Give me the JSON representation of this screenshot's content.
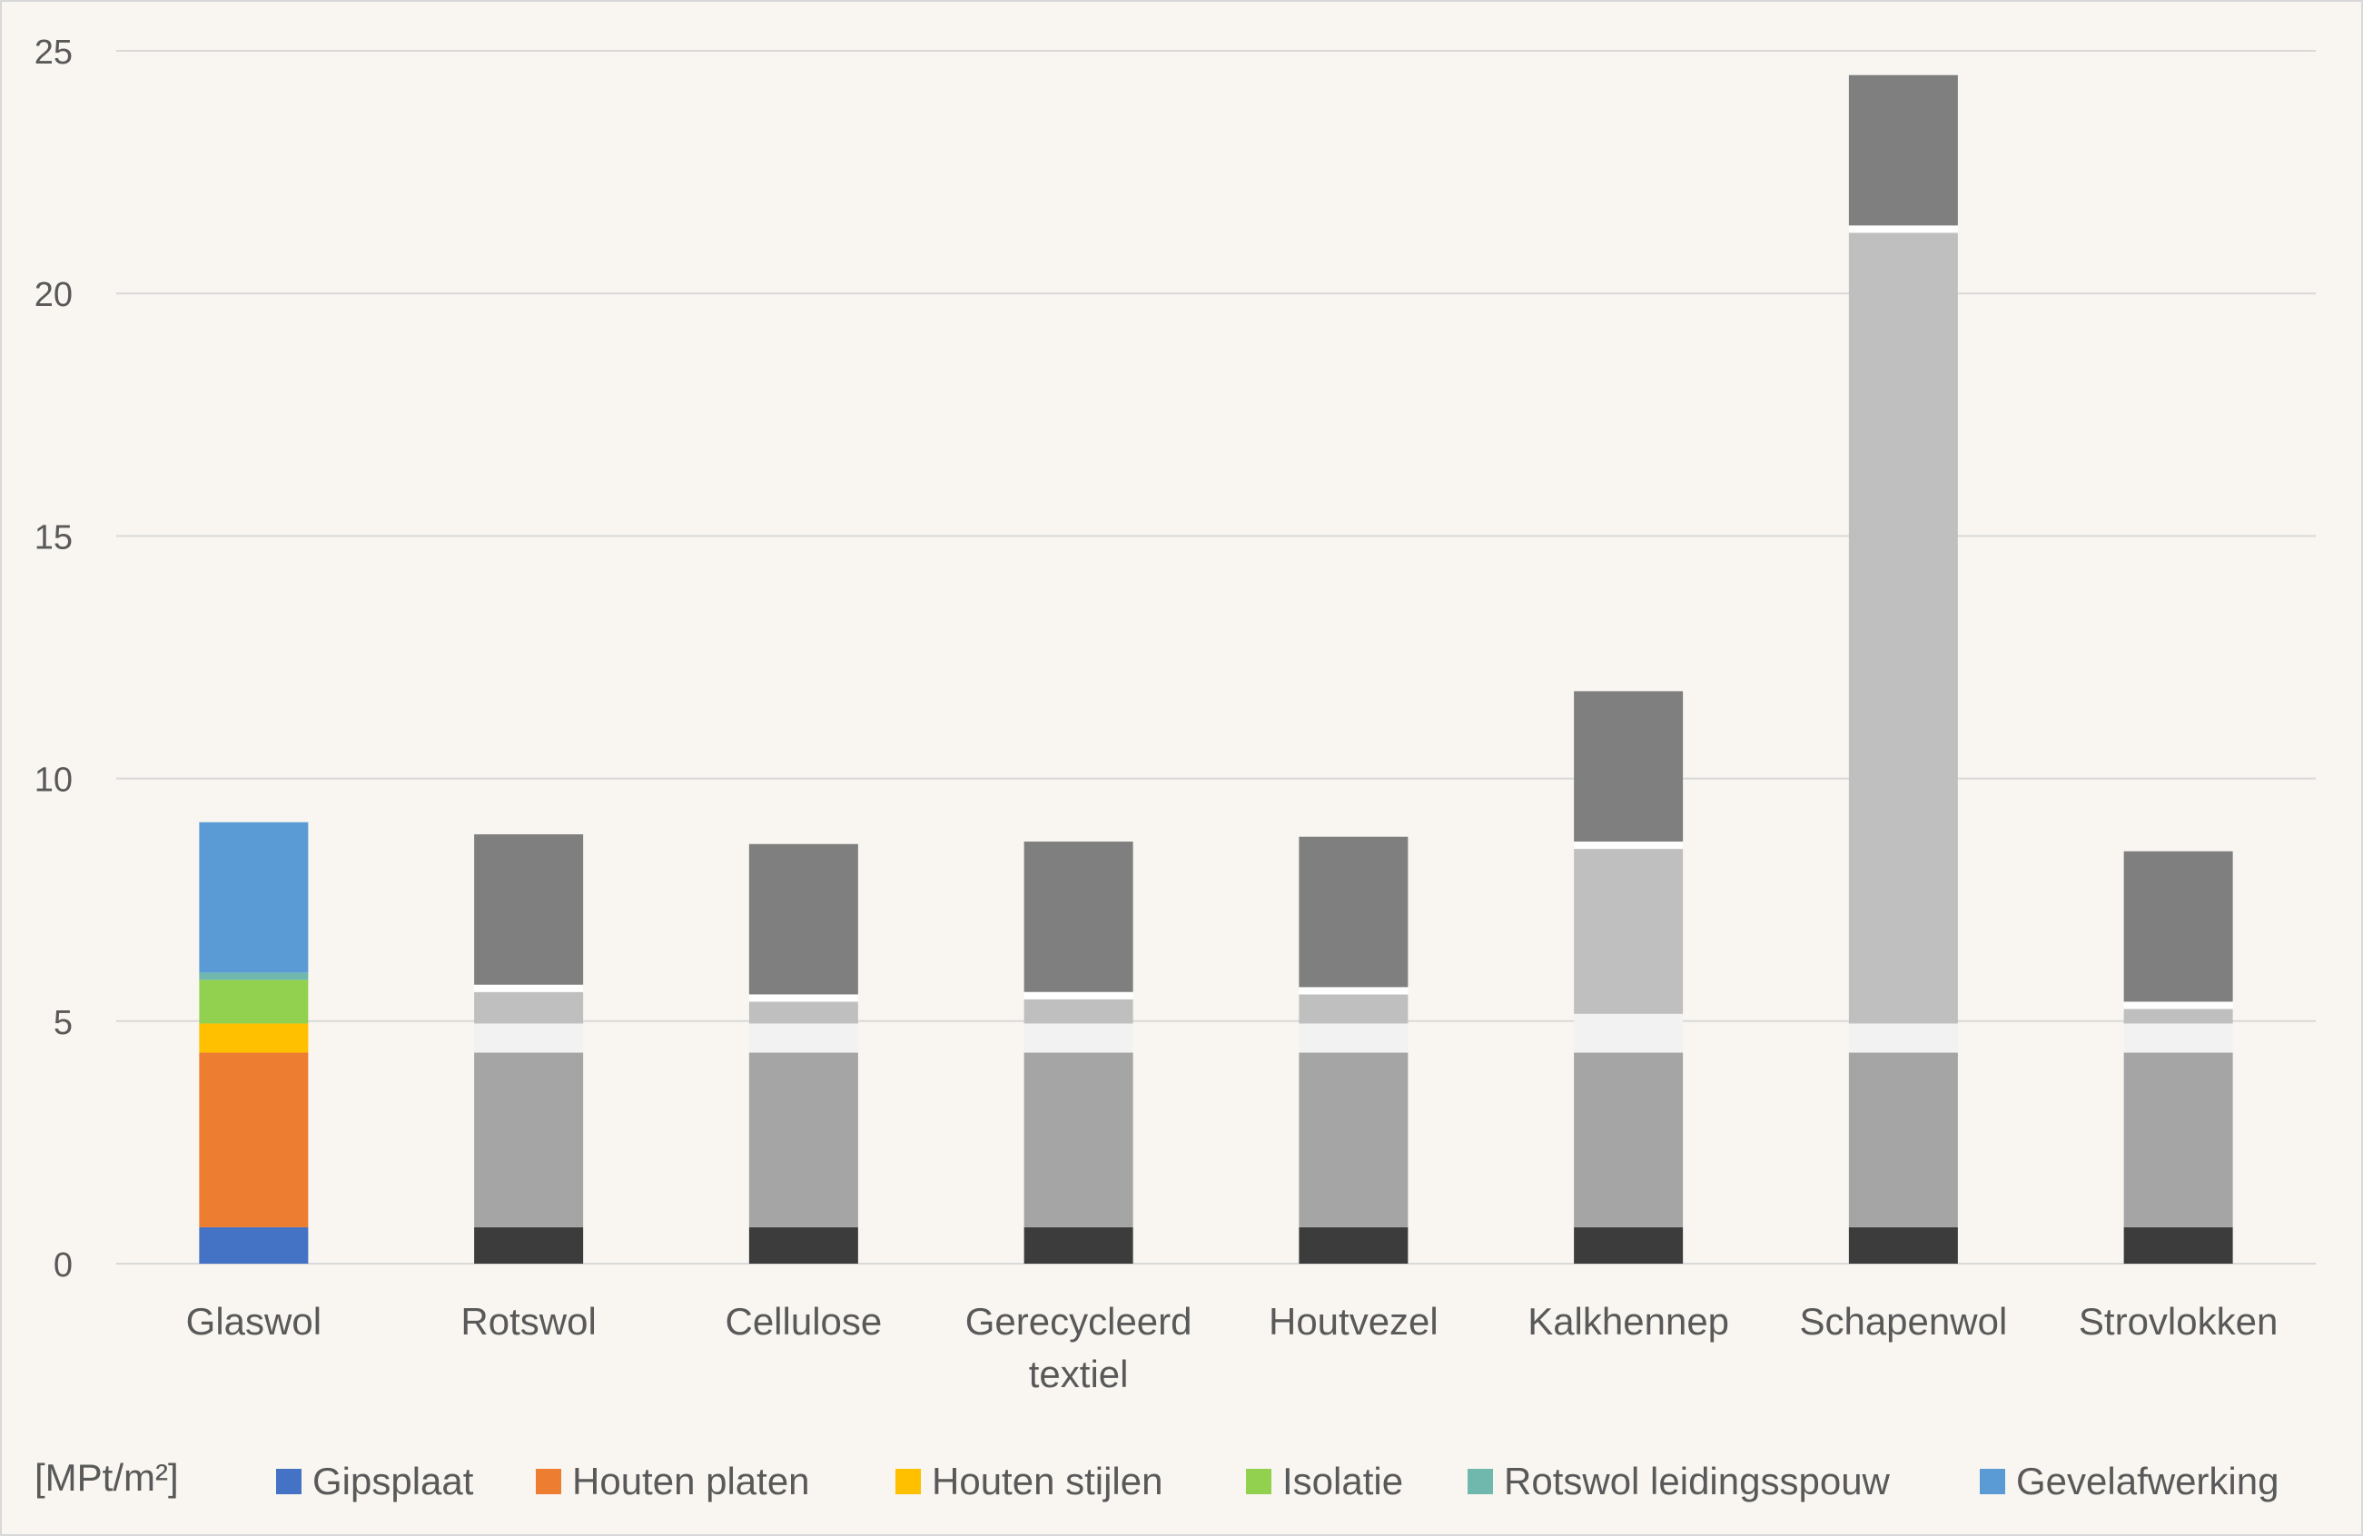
{
  "chart_data": {
    "type": "bar",
    "stacked": true,
    "title": "",
    "xlabel": "",
    "ylabel": "",
    "unit_label": "[MPt/m²]",
    "ylim": [
      0,
      25
    ],
    "yticks": [
      "0",
      "5",
      "10",
      "15",
      "20",
      "25"
    ],
    "grid": true,
    "legend_position": "bottom",
    "categories": [
      [
        "Glaswol"
      ],
      [
        "Rotswol"
      ],
      [
        "Cellulose"
      ],
      [
        "Gerecycleerd",
        "textiel"
      ],
      [
        "Houtvezel"
      ],
      [
        "Kalkhennep"
      ],
      [
        "Schapenwol"
      ],
      [
        "Strovlokken"
      ]
    ],
    "series": [
      {
        "name": "Gipsplaat",
        "color": "#4472c4",
        "values": [
          0.75,
          0.75,
          0.75,
          0.75,
          0.75,
          0.75,
          0.75,
          0.75
        ]
      },
      {
        "name": "Houten platen",
        "color": "#ed7d31",
        "values": [
          3.6,
          3.6,
          3.6,
          3.6,
          3.6,
          3.6,
          3.6,
          3.6
        ]
      },
      {
        "name": "Houten stijlen",
        "color": "#ffc000",
        "values": [
          0.6,
          0.6,
          0.6,
          0.6,
          0.6,
          0.8,
          0.6,
          0.6
        ]
      },
      {
        "name": "Isolatie",
        "color": "#92d050",
        "values": [
          0.9,
          0.65,
          0.45,
          0.5,
          0.6,
          3.4,
          16.3,
          0.3
        ]
      },
      {
        "name": "Rotswol leidingsspouw",
        "color": "#70b8ad",
        "values": [
          0.15,
          0.15,
          0.15,
          0.15,
          0.15,
          0.15,
          0.15,
          0.15
        ]
      },
      {
        "name": "Gevelafwerking",
        "color": "#5b9bd5",
        "values": [
          3.1,
          3.1,
          3.1,
          3.1,
          3.1,
          3.1,
          3.1,
          3.1
        ]
      }
    ],
    "muted_colors": [
      "#3c3c3c",
      "#a5a5a5",
      "#f2f2f2",
      "#bfbfbf",
      "#ffffff",
      "#7f7f7f"
    ],
    "highlighted_category_index": 0
  }
}
